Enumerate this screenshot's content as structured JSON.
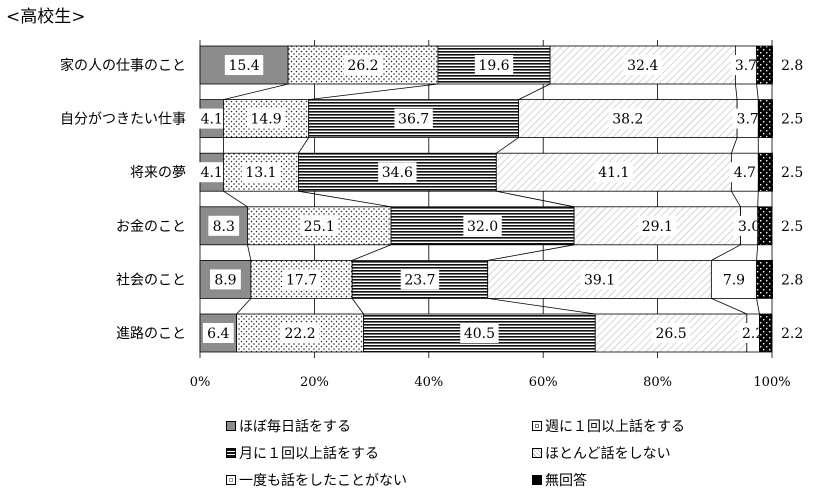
{
  "chart_data": {
    "type": "bar",
    "stacked": true,
    "orientation": "horizontal",
    "title": "<高校生>",
    "categories": [
      "家の人の仕事のこと",
      "自分がつきたい仕事",
      "将来の夢",
      "お金のこと",
      "社会のこと",
      "進路のこと"
    ],
    "series": [
      {
        "name": "ほぼ毎日話をする",
        "values": [
          15.4,
          4.1,
          4.1,
          8.3,
          8.9,
          6.4
        ],
        "labels": [
          "15.4",
          "4.1",
          "4.1",
          "8.3",
          "8.9",
          "6.4"
        ]
      },
      {
        "name": "週に１回以上話をする",
        "values": [
          26.2,
          14.9,
          13.1,
          25.1,
          17.7,
          22.2
        ],
        "labels": [
          "26.2",
          "14.9",
          "13.1",
          "25.1",
          "17.7",
          "22.2"
        ]
      },
      {
        "name": "月に１回以上話をする",
        "values": [
          19.6,
          36.7,
          34.6,
          32.0,
          23.7,
          40.5
        ],
        "labels": [
          "19.6",
          "36.7",
          "34.6",
          "32.0",
          "23.7",
          "40.5"
        ]
      },
      {
        "name": "ほとんど話をしない",
        "values": [
          32.4,
          38.2,
          41.1,
          29.1,
          39.1,
          26.5
        ],
        "labels": [
          "32.4",
          "38.2",
          "41.1",
          "29.1",
          "39.1",
          "26.5"
        ]
      },
      {
        "name": "一度も話をしたことがない",
        "values": [
          3.7,
          3.7,
          4.7,
          3.0,
          7.9,
          2.2
        ],
        "labels": [
          "3.7",
          "3.7",
          "4.7",
          "3.0",
          "7.9",
          "2.2"
        ]
      },
      {
        "name": "無回答",
        "values": [
          2.8,
          2.5,
          2.5,
          2.5,
          2.8,
          2.2
        ],
        "labels": [
          "2.8",
          "2.5",
          "2.5",
          "2.5",
          "2.8",
          "2.2"
        ]
      }
    ],
    "xlim": [
      0,
      100
    ],
    "xticks": [
      "0%",
      "20%",
      "40%",
      "60%",
      "80%",
      "100%"
    ],
    "grid": true,
    "legend_position": "bottom"
  }
}
